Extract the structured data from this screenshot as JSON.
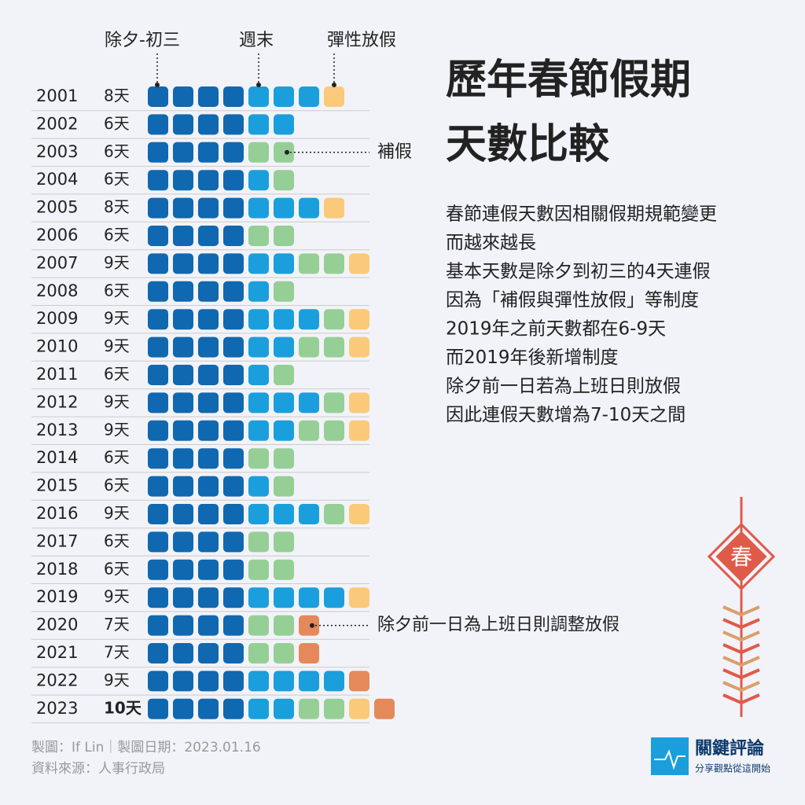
{
  "chart_data": {
    "type": "unit",
    "title_lines": [
      "歷年春節假期",
      "天數比較"
    ],
    "description": [
      "春節連假天數因相關假期規範變更",
      "而越來越長",
      "基本天數是除夕到初三的4天連假",
      "因為「補假與彈性放假」等制度",
      "2019年之前天數都在6-9天",
      "而2019年後新增制度",
      "除夕前一日若為上班日則放假",
      "因此連假天數增為7-10天之間"
    ],
    "categories": [
      "2001",
      "2002",
      "2003",
      "2004",
      "2005",
      "2006",
      "2007",
      "2008",
      "2009",
      "2010",
      "2011",
      "2012",
      "2013",
      "2014",
      "2015",
      "2016",
      "2017",
      "2018",
      "2019",
      "2020",
      "2021",
      "2022",
      "2023"
    ],
    "values": [
      8,
      6,
      6,
      6,
      8,
      6,
      9,
      6,
      9,
      9,
      6,
      9,
      9,
      6,
      6,
      9,
      6,
      6,
      9,
      7,
      7,
      9,
      10
    ],
    "value_labels": [
      "8天",
      "6天",
      "6天",
      "6天",
      "8天",
      "6天",
      "9天",
      "6天",
      "9天",
      "9天",
      "6天",
      "9天",
      "9天",
      "6天",
      "6天",
      "9天",
      "6天",
      "6天",
      "9天",
      "7天",
      "7天",
      "9天",
      "10天"
    ],
    "series": [
      {
        "name": "除夕-初三",
        "color": "#0f68b0",
        "values": [
          4,
          4,
          4,
          4,
          4,
          4,
          4,
          4,
          4,
          4,
          4,
          4,
          4,
          4,
          4,
          4,
          4,
          4,
          4,
          4,
          4,
          4,
          4
        ]
      },
      {
        "name": "週末",
        "color": "#1a9fdc",
        "values": [
          3,
          2,
          0,
          1,
          3,
          0,
          2,
          1,
          3,
          2,
          1,
          3,
          2,
          0,
          1,
          3,
          0,
          0,
          4,
          0,
          0,
          4,
          2
        ]
      },
      {
        "name": "補假",
        "color": "#96cf96",
        "values": [
          0,
          0,
          2,
          1,
          0,
          2,
          2,
          1,
          1,
          2,
          1,
          1,
          2,
          2,
          1,
          1,
          2,
          2,
          0,
          2,
          2,
          0,
          2
        ]
      },
      {
        "name": "彈性放假",
        "color": "#fbc97a",
        "values": [
          1,
          0,
          0,
          0,
          1,
          0,
          1,
          0,
          1,
          1,
          0,
          1,
          1,
          0,
          0,
          1,
          0,
          0,
          1,
          0,
          0,
          0,
          1
        ]
      },
      {
        "name": "除夕前一日為上班日則調整放假",
        "color": "#e5895a",
        "values": [
          0,
          0,
          0,
          0,
          0,
          0,
          0,
          0,
          0,
          0,
          0,
          0,
          0,
          0,
          0,
          0,
          0,
          0,
          0,
          1,
          1,
          1,
          1
        ]
      }
    ],
    "footer": [
      "製圖：If Lin｜製圖日期：2023.01.16",
      "資料來源：人事行政局"
    ],
    "logo": {
      "name": "關鍵評論",
      "tagline": "分享觀點從這開始"
    },
    "ornament": "春"
  }
}
